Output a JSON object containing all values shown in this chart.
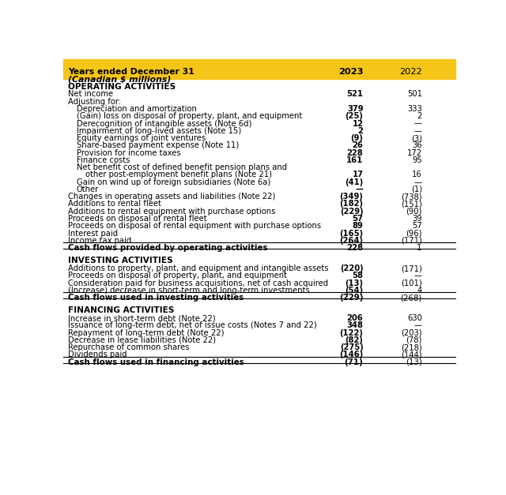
{
  "header_bg": "#F5C518",
  "title_line1": "Years ended December 31",
  "title_line2": "(Canadian $ millions)",
  "col2023": "2023",
  "col2022": "2022",
  "bg_color": "#FFFFFF",
  "rows": [
    {
      "label": "OPERATING ACTIVITIES",
      "v2023": "",
      "v2022": "",
      "style": "section_header",
      "indent": 0
    },
    {
      "label": "Net income",
      "v2023": "521",
      "v2022": "501",
      "style": "bold_value",
      "indent": 0
    },
    {
      "label": "Adjusting for:",
      "v2023": "",
      "v2022": "",
      "style": "normal",
      "indent": 0
    },
    {
      "label": "Depreciation and amortization",
      "v2023": "379",
      "v2022": "333",
      "style": "bold_value",
      "indent": 1
    },
    {
      "label": "(Gain) loss on disposal of property, plant, and equipment",
      "v2023": "(25)",
      "v2022": "2",
      "style": "bold_value",
      "indent": 1
    },
    {
      "label": "Derecognition of intangible assets (Note 6d)",
      "v2023": "12",
      "v2022": "—",
      "style": "bold_value",
      "indent": 1
    },
    {
      "label": "Impairment of long-lived assets (Note 15)",
      "v2023": "2",
      "v2022": "—",
      "style": "bold_value",
      "indent": 1
    },
    {
      "label": "Equity earnings of joint ventures",
      "v2023": "(9)",
      "v2022": "(3)",
      "style": "bold_value",
      "indent": 1
    },
    {
      "label": "Share-based payment expense (Note 11)",
      "v2023": "26",
      "v2022": "36",
      "style": "bold_value",
      "indent": 1
    },
    {
      "label": "Provision for income taxes",
      "v2023": "228",
      "v2022": "172",
      "style": "bold_value",
      "indent": 1
    },
    {
      "label": "Finance costs",
      "v2023": "161",
      "v2022": "95",
      "style": "bold_value",
      "indent": 1
    },
    {
      "label": "Net benefit cost of defined benefit pension plans and",
      "v2023": "",
      "v2022": "",
      "style": "normal",
      "indent": 1
    },
    {
      "label": "other post-employment benefit plans (Note 21)",
      "v2023": "17",
      "v2022": "16",
      "style": "bold_value",
      "indent": 2
    },
    {
      "label": "Gain on wind up of foreign subsidiaries (Note 6a)",
      "v2023": "(41)",
      "v2022": "—",
      "style": "bold_value",
      "indent": 1
    },
    {
      "label": "Other",
      "v2023": "—",
      "v2022": "(1)",
      "style": "bold_value",
      "indent": 1
    },
    {
      "label": "Changes in operating assets and liabilities (Note 22)",
      "v2023": "(349)",
      "v2022": "(738)",
      "style": "bold_value",
      "indent": 0
    },
    {
      "label": "Additions to rental fleet",
      "v2023": "(182)",
      "v2022": "(151)",
      "style": "bold_value",
      "indent": 0
    },
    {
      "label": "Additions to rental equipment with purchase options",
      "v2023": "(229)",
      "v2022": "(90)",
      "style": "bold_value",
      "indent": 0
    },
    {
      "label": "Proceeds on disposal of rental fleet",
      "v2023": "57",
      "v2022": "39",
      "style": "bold_value",
      "indent": 0
    },
    {
      "label": "Proceeds on disposal of rental equipment with purchase options",
      "v2023": "89",
      "v2022": "57",
      "style": "bold_value",
      "indent": 0
    },
    {
      "label": "Interest paid",
      "v2023": "(165)",
      "v2022": "(96)",
      "style": "bold_value",
      "indent": 0
    },
    {
      "label": "Income tax paid",
      "v2023": "(264)",
      "v2022": "(171)",
      "style": "bold_value",
      "indent": 0
    },
    {
      "label": "Cash flows provided by operating activities",
      "v2023": "228",
      "v2022": "1",
      "style": "total",
      "indent": 0
    },
    {
      "label": "",
      "v2023": "",
      "v2022": "",
      "style": "spacer",
      "indent": 0
    },
    {
      "label": "INVESTING ACTIVITIES",
      "v2023": "",
      "v2022": "",
      "style": "section_header",
      "indent": 0
    },
    {
      "label": "Additions to property, plant, and equipment and intangible assets",
      "v2023": "(220)",
      "v2022": "(171)",
      "style": "bold_value",
      "indent": 0
    },
    {
      "label": "Proceeds on disposal of property, plant, and equipment",
      "v2023": "58",
      "v2022": "—",
      "style": "bold_value",
      "indent": 0
    },
    {
      "label": "Consideration paid for business acquisitions, net of cash acquired",
      "v2023": "(13)",
      "v2022": "(101)",
      "style": "bold_value",
      "indent": 0
    },
    {
      "label": "(Increase) decrease in short-term and long-term investments",
      "v2023": "(54)",
      "v2022": "4",
      "style": "bold_value",
      "indent": 0
    },
    {
      "label": "Cash flows used in investing activities",
      "v2023": "(229)",
      "v2022": "(268)",
      "style": "total",
      "indent": 0
    },
    {
      "label": "",
      "v2023": "",
      "v2022": "",
      "style": "spacer",
      "indent": 0
    },
    {
      "label": "FINANCING ACTIVITIES",
      "v2023": "",
      "v2022": "",
      "style": "section_header",
      "indent": 0
    },
    {
      "label": "Increase in short-term debt (Note 22)",
      "v2023": "206",
      "v2022": "630",
      "style": "bold_value",
      "indent": 0
    },
    {
      "label": "Issuance of long-term debt, net of issue costs (Notes 7 and 22)",
      "v2023": "348",
      "v2022": "—",
      "style": "bold_value",
      "indent": 0
    },
    {
      "label": "Repayment of long-term debt (Note 22)",
      "v2023": "(122)",
      "v2022": "(203)",
      "style": "bold_value",
      "indent": 0
    },
    {
      "label": "Decrease in lease liabilities (Note 22)",
      "v2023": "(82)",
      "v2022": "(78)",
      "style": "bold_value",
      "indent": 0
    },
    {
      "label": "Repurchase of common shares",
      "v2023": "(275)",
      "v2022": "(218)",
      "style": "bold_value",
      "indent": 0
    },
    {
      "label": "Dividends paid",
      "v2023": "(146)",
      "v2022": "(144)",
      "style": "bold_value",
      "indent": 0
    },
    {
      "label": "Cash flows used in financing activities",
      "v2023": "(71)",
      "v2022": "(13)",
      "style": "total",
      "indent": 0
    }
  ]
}
